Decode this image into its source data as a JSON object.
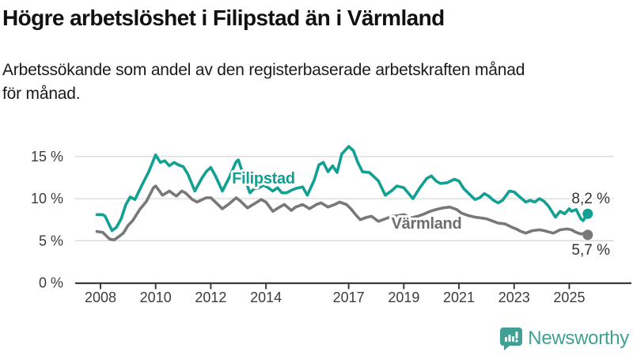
{
  "title": "Högre arbetslöshet i Filipstad än i Värmland",
  "subtitle_lines": [
    "Arbetssökande som andel av den registerbaserade arbetskraften månad",
    "för månad."
  ],
  "footer": {
    "brand": "Newsworthy",
    "logo_icon": "bar-chart-speech-bubble-icon"
  },
  "colors": {
    "filipstad": "#12a092",
    "varmland": "#787878",
    "varmland_label": "#6e6e6e",
    "axis": "#3c3c3c",
    "grid": "#d8d8d8",
    "title_text": "#111111",
    "value_text": "#333333",
    "brand_teal": "#41a094"
  },
  "chart_data": {
    "type": "line",
    "title": "Högre arbetslöshet i Filipstad än i Värmland",
    "subtitle": "Arbetssökande som andel av den registerbaserade arbetskraften månad för månad.",
    "unit": "%",
    "decimal_separator": ",",
    "grid": "horizontal",
    "legend_position": "inline-labels",
    "xlim": [
      2007.85,
      2025.8
    ],
    "ylim": [
      0,
      17
    ],
    "x_ticks": [
      2008,
      2010,
      2012,
      2014,
      2017,
      2019,
      2021,
      2023,
      2025
    ],
    "y_ticks": [
      0,
      5,
      10,
      15
    ],
    "series": [
      {
        "name": "Filipstad",
        "end_label": "8,2 %",
        "latest_value": 8.2,
        "points": [
          [
            2007.87,
            8.1
          ],
          [
            2008.08,
            8.1
          ],
          [
            2008.17,
            7.9
          ],
          [
            2008.42,
            6.2
          ],
          [
            2008.58,
            6.6
          ],
          [
            2008.75,
            7.6
          ],
          [
            2008.92,
            9.3
          ],
          [
            2009.08,
            10.2
          ],
          [
            2009.25,
            9.9
          ],
          [
            2009.5,
            11.6
          ],
          [
            2009.75,
            13.2
          ],
          [
            2010.0,
            15.2
          ],
          [
            2010.17,
            14.3
          ],
          [
            2010.33,
            14.5
          ],
          [
            2010.5,
            13.9
          ],
          [
            2010.67,
            14.3
          ],
          [
            2010.83,
            14.0
          ],
          [
            2011.0,
            13.8
          ],
          [
            2011.17,
            12.9
          ],
          [
            2011.42,
            10.9
          ],
          [
            2011.67,
            12.4
          ],
          [
            2011.83,
            13.2
          ],
          [
            2012.0,
            13.7
          ],
          [
            2012.17,
            12.7
          ],
          [
            2012.42,
            10.9
          ],
          [
            2012.67,
            12.5
          ],
          [
            2012.92,
            14.4
          ],
          [
            2013.0,
            14.6
          ],
          [
            2013.17,
            12.9
          ],
          [
            2013.42,
            10.7
          ],
          [
            2013.58,
            11.2
          ],
          [
            2013.75,
            11.3
          ],
          [
            2013.92,
            11.6
          ],
          [
            2014.08,
            11.3
          ],
          [
            2014.25,
            10.9
          ],
          [
            2014.42,
            11.3
          ],
          [
            2014.58,
            10.7
          ],
          [
            2014.75,
            10.7
          ],
          [
            2014.92,
            11.0
          ],
          [
            2015.08,
            11.2
          ],
          [
            2015.33,
            11.4
          ],
          [
            2015.5,
            10.4
          ],
          [
            2015.75,
            12.2
          ],
          [
            2015.92,
            14.0
          ],
          [
            2016.08,
            14.3
          ],
          [
            2016.25,
            13.2
          ],
          [
            2016.42,
            13.9
          ],
          [
            2016.58,
            13.1
          ],
          [
            2016.75,
            15.3
          ],
          [
            2017.0,
            16.2
          ],
          [
            2017.17,
            15.7
          ],
          [
            2017.33,
            14.3
          ],
          [
            2017.5,
            13.2
          ],
          [
            2017.75,
            13.1
          ],
          [
            2017.92,
            12.6
          ],
          [
            2018.08,
            12.1
          ],
          [
            2018.33,
            10.4
          ],
          [
            2018.58,
            11.0
          ],
          [
            2018.75,
            11.5
          ],
          [
            2019.0,
            11.3
          ],
          [
            2019.33,
            10.0
          ],
          [
            2019.58,
            11.3
          ],
          [
            2019.83,
            12.4
          ],
          [
            2020.0,
            12.7
          ],
          [
            2020.17,
            12.1
          ],
          [
            2020.33,
            11.8
          ],
          [
            2020.58,
            11.9
          ],
          [
            2020.83,
            12.3
          ],
          [
            2021.0,
            12.1
          ],
          [
            2021.17,
            11.2
          ],
          [
            2021.42,
            10.4
          ],
          [
            2021.58,
            9.9
          ],
          [
            2021.75,
            10.1
          ],
          [
            2021.92,
            10.6
          ],
          [
            2022.08,
            10.3
          ],
          [
            2022.25,
            9.8
          ],
          [
            2022.42,
            9.5
          ],
          [
            2022.58,
            9.8
          ],
          [
            2022.83,
            10.9
          ],
          [
            2023.0,
            10.8
          ],
          [
            2023.17,
            10.3
          ],
          [
            2023.42,
            9.6
          ],
          [
            2023.58,
            9.8
          ],
          [
            2023.75,
            9.6
          ],
          [
            2023.92,
            10.0
          ],
          [
            2024.08,
            9.7
          ],
          [
            2024.25,
            9.1
          ],
          [
            2024.5,
            7.8
          ],
          [
            2024.67,
            8.5
          ],
          [
            2024.83,
            8.2
          ],
          [
            2025.0,
            8.8
          ],
          [
            2025.08,
            8.5
          ],
          [
            2025.25,
            8.7
          ],
          [
            2025.42,
            7.6
          ],
          [
            2025.5,
            7.4
          ],
          [
            2025.67,
            8.2
          ]
        ]
      },
      {
        "name": "Värmland",
        "end_label": "5,7 %",
        "latest_value": 5.7,
        "points": [
          [
            2007.87,
            6.1
          ],
          [
            2008.08,
            6.0
          ],
          [
            2008.33,
            5.2
          ],
          [
            2008.5,
            5.1
          ],
          [
            2008.67,
            5.5
          ],
          [
            2008.83,
            5.9
          ],
          [
            2009.0,
            6.8
          ],
          [
            2009.17,
            7.4
          ],
          [
            2009.42,
            8.7
          ],
          [
            2009.67,
            9.7
          ],
          [
            2009.92,
            11.3
          ],
          [
            2010.0,
            11.5
          ],
          [
            2010.25,
            10.4
          ],
          [
            2010.5,
            10.9
          ],
          [
            2010.75,
            10.3
          ],
          [
            2010.95,
            10.9
          ],
          [
            2011.08,
            10.7
          ],
          [
            2011.33,
            9.9
          ],
          [
            2011.5,
            9.6
          ],
          [
            2011.83,
            10.1
          ],
          [
            2012.0,
            10.1
          ],
          [
            2012.17,
            9.6
          ],
          [
            2012.42,
            8.8
          ],
          [
            2012.67,
            9.4
          ],
          [
            2012.92,
            10.1
          ],
          [
            2013.08,
            9.7
          ],
          [
            2013.33,
            8.9
          ],
          [
            2013.58,
            9.4
          ],
          [
            2013.83,
            9.9
          ],
          [
            2014.0,
            9.6
          ],
          [
            2014.25,
            8.5
          ],
          [
            2014.5,
            9.0
          ],
          [
            2014.67,
            9.3
          ],
          [
            2014.92,
            8.6
          ],
          [
            2015.08,
            9.0
          ],
          [
            2015.33,
            9.3
          ],
          [
            2015.58,
            8.8
          ],
          [
            2015.83,
            9.3
          ],
          [
            2016.0,
            9.5
          ],
          [
            2016.25,
            9.0
          ],
          [
            2016.5,
            9.3
          ],
          [
            2016.67,
            9.6
          ],
          [
            2016.92,
            9.3
          ],
          [
            2017.08,
            8.8
          ],
          [
            2017.25,
            8.1
          ],
          [
            2017.42,
            7.5
          ],
          [
            2017.67,
            7.8
          ],
          [
            2017.83,
            7.9
          ],
          [
            2018.08,
            7.3
          ],
          [
            2018.33,
            7.6
          ],
          [
            2018.58,
            7.9
          ],
          [
            2018.83,
            8.0
          ],
          [
            2019.0,
            8.1
          ],
          [
            2019.25,
            7.7
          ],
          [
            2019.5,
            7.9
          ],
          [
            2019.75,
            8.2
          ],
          [
            2019.95,
            8.5
          ],
          [
            2020.17,
            8.7
          ],
          [
            2020.42,
            8.9
          ],
          [
            2020.67,
            9.0
          ],
          [
            2020.92,
            8.7
          ],
          [
            2021.08,
            8.3
          ],
          [
            2021.33,
            8.0
          ],
          [
            2021.58,
            7.8
          ],
          [
            2021.83,
            7.7
          ],
          [
            2022.0,
            7.6
          ],
          [
            2022.25,
            7.3
          ],
          [
            2022.42,
            7.1
          ],
          [
            2022.67,
            7.0
          ],
          [
            2022.92,
            6.6
          ],
          [
            2023.08,
            6.4
          ],
          [
            2023.25,
            6.1
          ],
          [
            2023.42,
            5.9
          ],
          [
            2023.67,
            6.2
          ],
          [
            2023.92,
            6.3
          ],
          [
            2024.08,
            6.2
          ],
          [
            2024.42,
            5.9
          ],
          [
            2024.67,
            6.3
          ],
          [
            2024.92,
            6.4
          ],
          [
            2025.08,
            6.3
          ],
          [
            2025.25,
            6.0
          ],
          [
            2025.42,
            5.8
          ],
          [
            2025.58,
            5.9
          ],
          [
            2025.67,
            5.7
          ]
        ]
      }
    ]
  }
}
